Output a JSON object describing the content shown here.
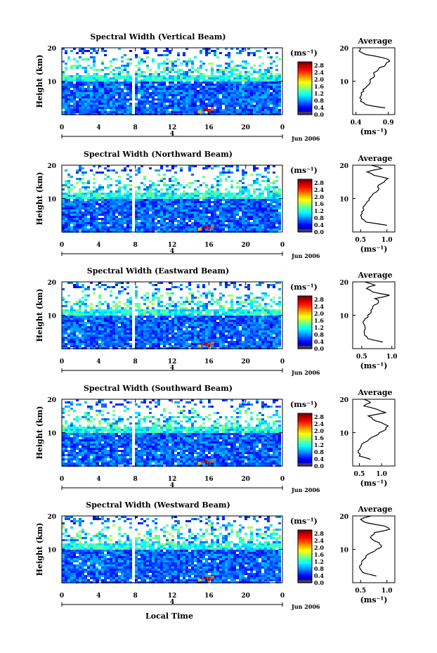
{
  "figure": {
    "xlabel": "Local Time",
    "date_label": "Jun 2006",
    "day_label": "4",
    "ylabel": "Height (km)",
    "unit_label": "(ms⁻¹)",
    "avg_title": "Average",
    "avg_xlabel": "(ms⁻¹)",
    "x_ticks": [
      "0",
      "4",
      "8",
      "12",
      "16",
      "20",
      "0"
    ],
    "y_ticks": [
      "10",
      "20"
    ],
    "colorbar_ticks": [
      "0.0",
      "0.4",
      "0.8",
      "1.2",
      "1.6",
      "2.0",
      "2.4",
      "2.8"
    ]
  },
  "chart_data": [
    {
      "type": "heatmap",
      "title": "Spectral Width (Vertical Beam)",
      "xlim": [
        0,
        24
      ],
      "ylim": [
        0,
        20
      ],
      "clim": [
        0,
        3.0
      ],
      "gap_time_h": 7.8,
      "average_profile": {
        "xticks": [
          "0.4",
          "0.9"
        ],
        "xlim": [
          0.35,
          1.0
        ],
        "height_km": [
          2,
          3,
          4,
          5,
          6,
          7,
          8,
          9,
          10,
          11,
          12,
          13,
          14,
          15,
          16,
          17,
          18,
          19,
          20
        ],
        "width_ms": [
          0.85,
          0.55,
          0.47,
          0.46,
          0.49,
          0.52,
          0.55,
          0.6,
          0.62,
          0.66,
          0.68,
          0.72,
          0.76,
          0.86,
          0.92,
          0.82,
          0.55,
          0.45,
          0.46
        ]
      }
    },
    {
      "type": "heatmap",
      "title": "Spectral Width (Northward Beam)",
      "xlim": [
        0,
        24
      ],
      "ylim": [
        0,
        20
      ],
      "clim": [
        0,
        3.0
      ],
      "gap_time_h": 7.8,
      "average_profile": {
        "xticks": [
          "0.5",
          "1.0"
        ],
        "xlim": [
          0.35,
          1.15
        ],
        "height_km": [
          2,
          3,
          4,
          5,
          6,
          7,
          8,
          9,
          10,
          11,
          12,
          13,
          14,
          15,
          16,
          17,
          18,
          19,
          20
        ],
        "width_ms": [
          1.0,
          0.6,
          0.52,
          0.5,
          0.52,
          0.55,
          0.58,
          0.62,
          0.66,
          0.72,
          0.8,
          0.85,
          0.84,
          0.95,
          1.02,
          0.75,
          0.62,
          0.9,
          0.7
        ]
      }
    },
    {
      "type": "heatmap",
      "title": "Spectral Width (Eastward Beam)",
      "xlim": [
        0,
        24
      ],
      "ylim": [
        0,
        20
      ],
      "clim": [
        0,
        3.0
      ],
      "gap_time_h": 7.8,
      "average_profile": {
        "xticks": [
          "0.5",
          "1.0"
        ],
        "xlim": [
          0.35,
          1.05
        ],
        "height_km": [
          2,
          3,
          4,
          5,
          6,
          7,
          8,
          9,
          10,
          11,
          12,
          13,
          14,
          15,
          16,
          17,
          18,
          19,
          20
        ],
        "width_ms": [
          0.85,
          0.6,
          0.55,
          0.54,
          0.56,
          0.55,
          0.52,
          0.56,
          0.6,
          0.66,
          0.68,
          0.7,
          0.78,
          0.72,
          0.96,
          0.68,
          0.58,
          0.72,
          0.55
        ]
      }
    },
    {
      "type": "heatmap",
      "title": "Spectral Width (Southward Beam)",
      "xlim": [
        0,
        24
      ],
      "ylim": [
        0,
        20
      ],
      "clim": [
        0,
        3.0
      ],
      "gap_time_h": 7.8,
      "average_profile": {
        "xticks": [
          "0.5",
          "1.0"
        ],
        "xlim": [
          0.35,
          1.3
        ],
        "height_km": [
          2,
          3,
          4,
          5,
          6,
          7,
          8,
          9,
          10,
          11,
          12,
          13,
          14,
          15,
          16,
          17,
          18,
          19,
          20
        ],
        "width_ms": [
          0.75,
          0.5,
          0.48,
          0.5,
          0.54,
          0.6,
          0.72,
          0.85,
          0.95,
          1.1,
          1.15,
          1.0,
          0.8,
          0.7,
          1.1,
          0.9,
          0.6,
          0.75,
          0.6
        ]
      }
    },
    {
      "type": "heatmap",
      "title": "Spectral Width (Westward Beam)",
      "xlim": [
        0,
        24
      ],
      "ylim": [
        0,
        20
      ],
      "clim": [
        0,
        3.0
      ],
      "gap_time_h": 7.8,
      "average_profile": {
        "xticks": [
          "0.5",
          "1.0"
        ],
        "xlim": [
          0.35,
          1.15
        ],
        "height_km": [
          2,
          3,
          4,
          5,
          6,
          7,
          8,
          9,
          10,
          11,
          12,
          13,
          14,
          15,
          16,
          17,
          18,
          19,
          20
        ],
        "width_ms": [
          0.8,
          0.55,
          0.5,
          0.48,
          0.52,
          0.56,
          0.6,
          0.7,
          0.8,
          0.9,
          0.85,
          0.72,
          0.7,
          0.76,
          1.05,
          0.95,
          0.6,
          0.5,
          0.7
        ]
      }
    }
  ]
}
